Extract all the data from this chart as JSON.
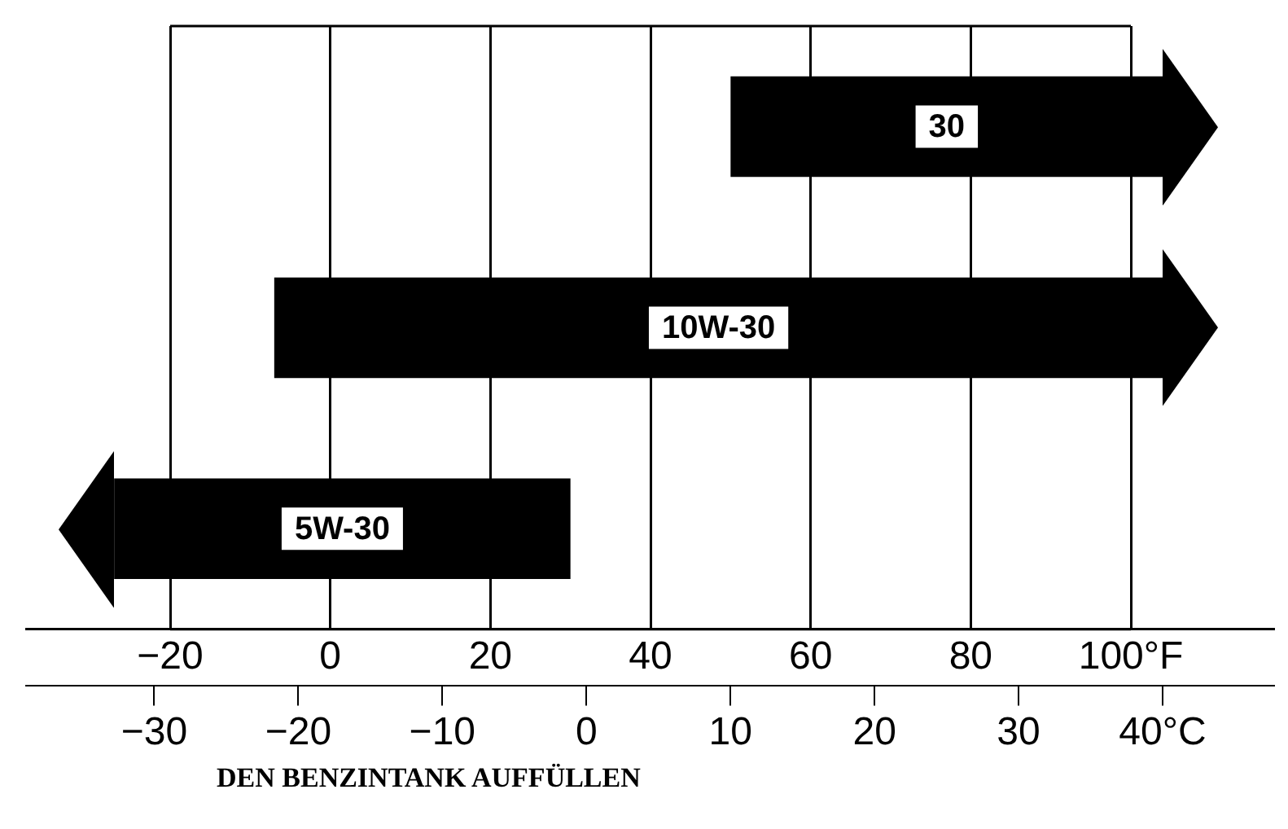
{
  "chart_data": {
    "type": "bar",
    "orientation": "horizontal",
    "categories": [
      "30",
      "10W-30",
      "5W-30"
    ],
    "series": [
      {
        "color": "#000000",
        "values": [
          54,
          111,
          -57
        ],
        "base": [
          50,
          -7,
          30
        ]
      }
    ],
    "xlim": [
      -38,
      118
    ],
    "xticks": [
      {
        "value": -20,
        "label": "−20"
      },
      {
        "value": 0,
        "label": "0"
      },
      {
        "value": 20,
        "label": "20"
      },
      {
        "value": 40,
        "label": "40"
      },
      {
        "value": 60,
        "label": "60"
      },
      {
        "value": 80,
        "label": "80"
      },
      {
        "value": 100,
        "label": "100°F"
      }
    ],
    "x2lim": [
      -38.9,
      47.8
    ],
    "x2ticks": [
      {
        "value": -30,
        "label": "−30"
      },
      {
        "value": -20,
        "label": "−20"
      },
      {
        "value": -10,
        "label": "−10"
      },
      {
        "value": 0,
        "label": "0"
      },
      {
        "value": 10,
        "label": "10"
      },
      {
        "value": 20,
        "label": "20"
      },
      {
        "value": 30,
        "label": "30"
      },
      {
        "value": 40,
        "label": "40°C"
      }
    ],
    "grid": "x",
    "legend": false,
    "tick_labels": "x",
    "annotations": [
      "DEN BENZINTANK AUFFÜLLEN"
    ]
  }
}
